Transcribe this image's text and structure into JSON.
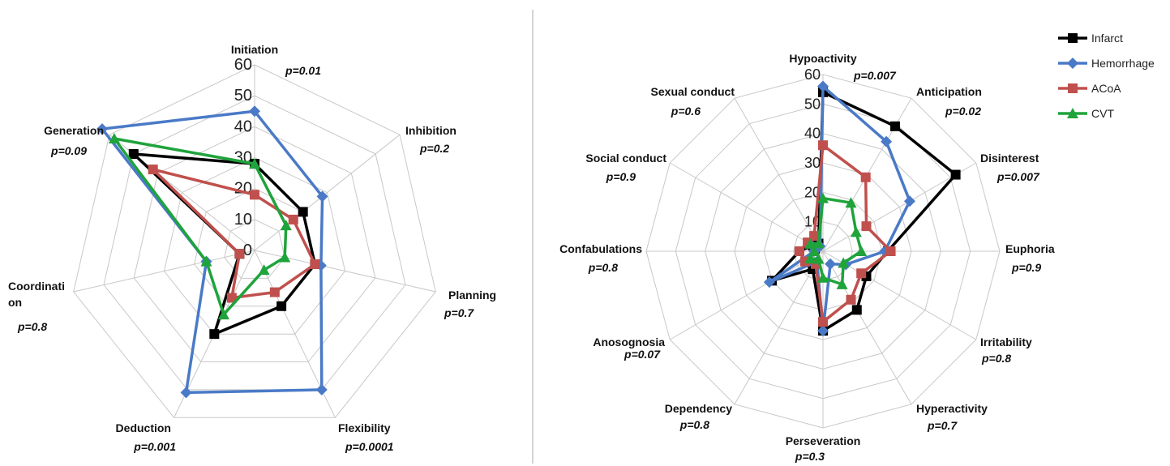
{
  "chart_data": [
    {
      "type": "radar",
      "r_range": [
        0,
        60
      ],
      "r_ticks": [
        0,
        10,
        20,
        30,
        40,
        50,
        60
      ],
      "grid": true,
      "axes": [
        {
          "label": "Initiation",
          "p": "p=0.01"
        },
        {
          "label": "Inhibition",
          "p": "p=0.2"
        },
        {
          "label": "Planning",
          "p": "p=0.7"
        },
        {
          "label": "Flexibility",
          "p": "p=0.0001"
        },
        {
          "label": "Deduction",
          "p": "p=0.001"
        },
        {
          "label": "Coordinati on",
          "p": "p=0.8"
        },
        {
          "label": "Generation",
          "p": "p=0.09"
        }
      ],
      "series": [
        {
          "name": "Infarct",
          "color": "#000000",
          "marker": "square",
          "values": [
            28,
            20,
            20,
            20,
            30,
            5,
            50
          ]
        },
        {
          "name": "Hemorrhage",
          "color": "#4a7ac7",
          "marker": "diamond",
          "values": [
            45,
            28,
            22,
            50,
            51,
            16,
            63
          ]
        },
        {
          "name": "ACoA",
          "color": "#c0504d",
          "marker": "square",
          "values": [
            18,
            16,
            20,
            15,
            17,
            5,
            42
          ]
        },
        {
          "name": "CVT",
          "color": "#1fa33b",
          "marker": "triangle",
          "values": [
            28,
            13,
            10,
            7,
            23,
            16,
            58
          ]
        }
      ]
    },
    {
      "type": "radar",
      "r_range": [
        0,
        60
      ],
      "r_ticks": [
        0,
        10,
        20,
        30,
        40,
        50,
        60
      ],
      "grid": true,
      "axes": [
        {
          "label": "Hypoactivity",
          "p": "p=0.007"
        },
        {
          "label": "Anticipation",
          "p": "p=0.02"
        },
        {
          "label": "Disinterest",
          "p": "p=0.007"
        },
        {
          "label": "Euphoria",
          "p": "p=0.9"
        },
        {
          "label": "Irritability",
          "p": "p=0.8"
        },
        {
          "label": "Hyperactivity",
          "p": "p=0.7"
        },
        {
          "label": "Perseveration",
          "p": "p=0.3"
        },
        {
          "label": "Dependency",
          "p": "p=0.8"
        },
        {
          "label": "Anosognosia",
          "p": "p=0.07"
        },
        {
          "label": "Confabulations",
          "p": "p=0.8"
        },
        {
          "label": "Social conduct",
          "p": "p=0.9"
        },
        {
          "label": "Sexual conduct",
          "p": "p=0.6"
        }
      ],
      "series": [
        {
          "name": "Infarct",
          "color": "#000000",
          "marker": "square",
          "values": [
            54,
            49,
            52,
            22,
            17,
            23,
            27,
            7,
            20,
            8,
            4,
            3
          ]
        },
        {
          "name": "Hemorrhage",
          "color": "#4a7ac7",
          "marker": "diamond",
          "values": [
            56,
            43,
            34,
            21,
            9,
            5,
            27,
            4,
            21,
            3,
            5,
            2
          ]
        },
        {
          "name": "ACoA",
          "color": "#c0504d",
          "marker": "square",
          "values": [
            36,
            29,
            17,
            23,
            15,
            19,
            24,
            5,
            7,
            8,
            6,
            6
          ]
        },
        {
          "name": "CVT",
          "color": "#1fa33b",
          "marker": "triangle",
          "values": [
            18,
            19,
            13,
            13,
            8,
            13,
            9,
            3,
            5,
            3,
            5,
            3
          ]
        }
      ]
    }
  ],
  "legend": {
    "position": "top-right",
    "items": [
      {
        "name": "Infarct",
        "color": "#000000",
        "marker": "square"
      },
      {
        "name": "Hemorrhage",
        "color": "#4a7ac7",
        "marker": "diamond"
      },
      {
        "name": "ACoA",
        "color": "#c0504d",
        "marker": "square"
      },
      {
        "name": "CVT",
        "color": "#1fa33b",
        "marker": "triangle"
      }
    ]
  }
}
